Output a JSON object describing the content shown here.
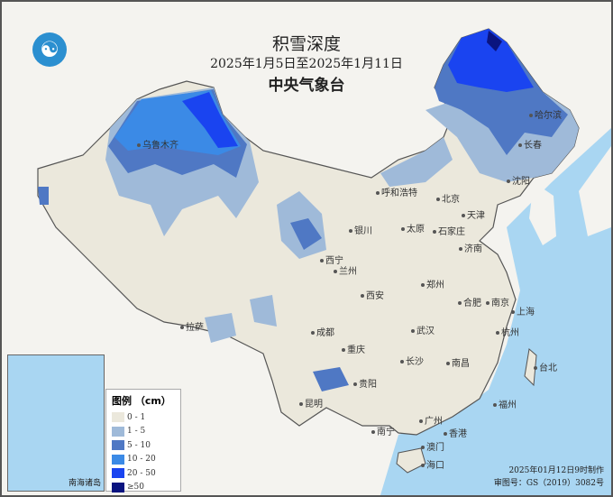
{
  "header": {
    "title": "积雪深度",
    "date_range": "2025年1月5日至2025年1月11日",
    "agency": "中央气象台",
    "logo_icon": "cma-logo-icon"
  },
  "legend": {
    "title": "图例 （cm）",
    "items": [
      {
        "label": "0 - 1",
        "color": "#ebe8dc"
      },
      {
        "label": "1 - 5",
        "color": "#9fbad9"
      },
      {
        "label": "5 - 10",
        "color": "#4f78c4"
      },
      {
        "label": "10 - 20",
        "color": "#3b8ae6"
      },
      {
        "label": "20 - 50",
        "color": "#1a44f0"
      },
      {
        "label": "≥50",
        "color": "#0a1480"
      }
    ]
  },
  "cities": [
    "乌鲁木齐",
    "哈尔滨",
    "长春",
    "沈阳",
    "呼和浩特",
    "北京",
    "天津",
    "太原",
    "石家庄",
    "济南",
    "银川",
    "西宁",
    "兰州",
    "西安",
    "郑州",
    "合肥",
    "南京",
    "上海",
    "拉萨",
    "成都",
    "重庆",
    "武汉",
    "杭州",
    "长沙",
    "南昌",
    "贵阳",
    "昆明",
    "福州",
    "台北",
    "南宁",
    "广州",
    "香港",
    "澳门",
    "海口"
  ],
  "inset": {
    "label": "南海诸岛"
  },
  "footer": {
    "made": "2025年01月12日9时制作",
    "approval": "审图号：GS（2019）3082号"
  },
  "colors": {
    "ocean": "#a9d6f2",
    "land": "#ebe8dc"
  }
}
